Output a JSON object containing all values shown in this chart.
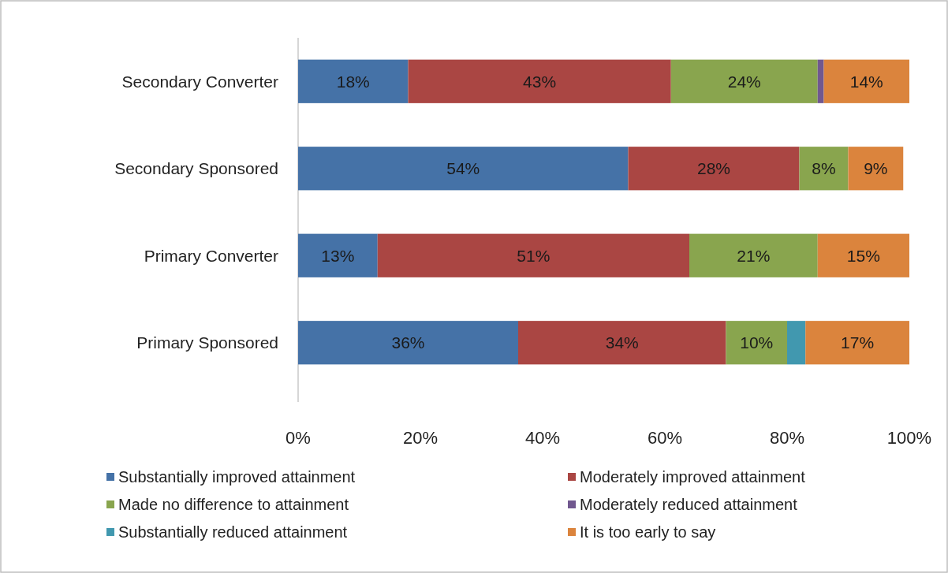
{
  "chart_data": {
    "type": "bar",
    "orientation": "horizontal",
    "stacked": true,
    "categories": [
      "Secondary Converter",
      "Secondary Sponsored",
      "Primary Converter",
      "Primary Sponsored"
    ],
    "series": [
      {
        "name": "Substantially improved attainment",
        "color": "#4572a7",
        "values": [
          18,
          54,
          13,
          36
        ],
        "value_labels": [
          "18%",
          "54%",
          "13%",
          "36%"
        ]
      },
      {
        "name": "Moderately improved attainment",
        "color": "#aa4643",
        "values": [
          43,
          28,
          51,
          34
        ],
        "value_labels": [
          "43%",
          "28%",
          "51%",
          "34%"
        ]
      },
      {
        "name": "Made no difference to attainment",
        "color": "#89a54e",
        "values": [
          24,
          8,
          21,
          10
        ],
        "value_labels": [
          "24%",
          "8%",
          "21%",
          "10%"
        ]
      },
      {
        "name": "Moderately reduced attainment",
        "color": "#71588f",
        "values": [
          1,
          null,
          null,
          null
        ],
        "value_labels": [
          null,
          null,
          null,
          null
        ]
      },
      {
        "name": "Substantially reduced attainment",
        "color": "#4198af",
        "values": [
          null,
          null,
          null,
          3
        ],
        "value_labels": [
          null,
          null,
          null,
          null
        ]
      },
      {
        "name": "It is too early to say",
        "color": "#db843d",
        "values": [
          14,
          9,
          15,
          17
        ],
        "value_labels": [
          "14%",
          "9%",
          "15%",
          "17%"
        ]
      }
    ],
    "xlim": [
      0,
      100
    ],
    "xticks": [
      {
        "value": 0,
        "label": "0%"
      },
      {
        "value": 20,
        "label": "20%"
      },
      {
        "value": 40,
        "label": "40%"
      },
      {
        "value": 60,
        "label": "60%"
      },
      {
        "value": 80,
        "label": "80%"
      },
      {
        "value": 100,
        "label": "100%"
      }
    ],
    "grid": false,
    "legend": "bottom"
  }
}
